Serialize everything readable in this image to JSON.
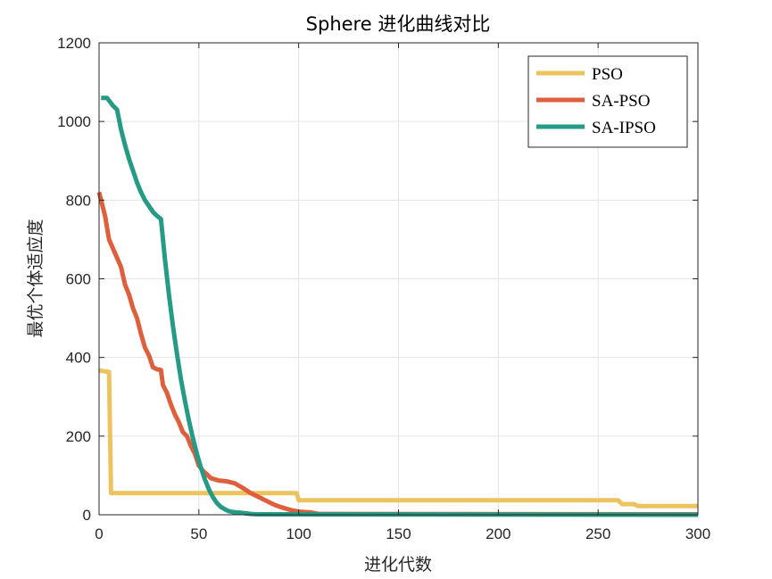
{
  "chart_data": {
    "type": "line",
    "title": "Sphere 进化曲线对比",
    "xlabel": "进化代数",
    "ylabel": "最优个体适应度",
    "xlim": [
      0,
      300
    ],
    "ylim": [
      0,
      1200
    ],
    "xticks": [
      0,
      50,
      100,
      150,
      200,
      250,
      300
    ],
    "yticks": [
      0,
      200,
      400,
      600,
      800,
      1000,
      1200
    ],
    "grid": true,
    "legend_position": "top-right",
    "series": [
      {
        "name": "PSO",
        "color": "#EDC35F",
        "points": [
          [
            0,
            367
          ],
          [
            5,
            363
          ],
          [
            6,
            55
          ],
          [
            99,
            55
          ],
          [
            100,
            37
          ],
          [
            260,
            37
          ],
          [
            262,
            27
          ],
          [
            268,
            27
          ],
          [
            270,
            22
          ],
          [
            300,
            22
          ]
        ]
      },
      {
        "name": "SA-PSO",
        "color": "#DE5F3C",
        "points": [
          [
            0,
            820
          ],
          [
            1,
            800
          ],
          [
            3,
            760
          ],
          [
            5,
            700
          ],
          [
            8,
            665
          ],
          [
            11,
            630
          ],
          [
            13,
            585
          ],
          [
            15,
            560
          ],
          [
            17,
            525
          ],
          [
            19,
            500
          ],
          [
            21,
            460
          ],
          [
            23,
            425
          ],
          [
            25,
            405
          ],
          [
            27,
            375
          ],
          [
            29,
            370
          ],
          [
            31,
            368
          ],
          [
            32,
            330
          ],
          [
            34,
            310
          ],
          [
            36,
            280
          ],
          [
            38,
            255
          ],
          [
            40,
            235
          ],
          [
            42,
            210
          ],
          [
            44,
            200
          ],
          [
            46,
            175
          ],
          [
            48,
            155
          ],
          [
            50,
            125
          ],
          [
            52,
            112
          ],
          [
            54,
            103
          ],
          [
            56,
            93
          ],
          [
            58,
            90
          ],
          [
            60,
            87
          ],
          [
            64,
            85
          ],
          [
            68,
            80
          ],
          [
            72,
            68
          ],
          [
            76,
            55
          ],
          [
            80,
            45
          ],
          [
            84,
            35
          ],
          [
            88,
            25
          ],
          [
            92,
            18
          ],
          [
            96,
            12
          ],
          [
            100,
            8
          ],
          [
            106,
            6
          ],
          [
            110,
            2
          ],
          [
            300,
            1
          ]
        ]
      },
      {
        "name": "SA-IPSO",
        "color": "#259B86",
        "points": [
          [
            1,
            1060
          ],
          [
            4,
            1060
          ],
          [
            7,
            1040
          ],
          [
            9,
            1030
          ],
          [
            11,
            980
          ],
          [
            13,
            940
          ],
          [
            15,
            905
          ],
          [
            17,
            875
          ],
          [
            19,
            845
          ],
          [
            21,
            820
          ],
          [
            23,
            800
          ],
          [
            25,
            785
          ],
          [
            27,
            770
          ],
          [
            29,
            760
          ],
          [
            31,
            752
          ],
          [
            33,
            650
          ],
          [
            35,
            560
          ],
          [
            37,
            480
          ],
          [
            39,
            410
          ],
          [
            41,
            345
          ],
          [
            43,
            290
          ],
          [
            45,
            240
          ],
          [
            47,
            195
          ],
          [
            49,
            155
          ],
          [
            51,
            120
          ],
          [
            53,
            90
          ],
          [
            55,
            65
          ],
          [
            57,
            45
          ],
          [
            59,
            30
          ],
          [
            61,
            20
          ],
          [
            63,
            14
          ],
          [
            65,
            9
          ],
          [
            67,
            7
          ],
          [
            69,
            6
          ],
          [
            71,
            5
          ],
          [
            73,
            4
          ],
          [
            76,
            2
          ],
          [
            80,
            1
          ],
          [
            300,
            0
          ]
        ]
      }
    ]
  }
}
